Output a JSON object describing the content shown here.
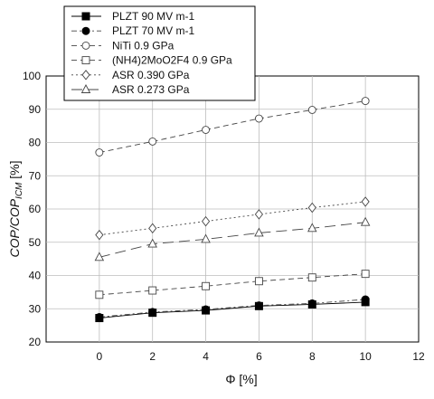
{
  "chart_data": {
    "type": "scatter",
    "title": "",
    "xlabel": "Φ [%]",
    "ylabel_parts": [
      "COP/COP",
      "ICM",
      " [%]"
    ],
    "xlim": [
      -2,
      12
    ],
    "ylim": [
      20,
      100
    ],
    "xticks": [
      0,
      2,
      4,
      6,
      8,
      10,
      12
    ],
    "yticks": [
      20,
      30,
      40,
      50,
      60,
      70,
      80,
      90,
      100
    ],
    "grid": true,
    "legend_position": "top",
    "series": [
      {
        "name": "PLZT 90 MV m-1",
        "marker": "filled-square",
        "line": "solid",
        "points": [
          [
            0,
            27.2
          ],
          [
            2,
            28.8
          ],
          [
            4,
            29.5
          ],
          [
            6,
            30.8
          ],
          [
            8,
            31.3
          ],
          [
            10,
            32.0
          ]
        ]
      },
      {
        "name": "PLZT 70 MV m-1",
        "marker": "filled-circle",
        "line": "dash-dot",
        "points": [
          [
            0,
            27.5
          ],
          [
            2,
            29.0
          ],
          [
            4,
            29.8
          ],
          [
            6,
            31.0
          ],
          [
            8,
            31.6
          ],
          [
            10,
            32.8
          ]
        ]
      },
      {
        "name": "NiTi 0.9 GPa",
        "marker": "open-circle",
        "line": "dashed",
        "points": [
          [
            0,
            77.0
          ],
          [
            2,
            80.3
          ],
          [
            4,
            83.8
          ],
          [
            6,
            87.2
          ],
          [
            8,
            89.8
          ],
          [
            10,
            92.5
          ]
        ]
      },
      {
        "name": "(NH4)2MoO2F4 0.9 GPa",
        "marker": "open-square",
        "line": "dashed",
        "points": [
          [
            0,
            34.2
          ],
          [
            2,
            35.5
          ],
          [
            4,
            36.8
          ],
          [
            6,
            38.3
          ],
          [
            8,
            39.4
          ],
          [
            10,
            40.5
          ]
        ]
      },
      {
        "name": "ASR 0.390 GPa",
        "marker": "open-diamond",
        "line": "dotted",
        "points": [
          [
            0,
            52.2
          ],
          [
            2,
            54.2
          ],
          [
            4,
            56.3
          ],
          [
            6,
            58.4
          ],
          [
            8,
            60.4
          ],
          [
            10,
            62.2
          ]
        ]
      },
      {
        "name": "ASR 0.273 GPa",
        "marker": "open-triangle",
        "line": "long-dash",
        "points": [
          [
            0,
            45.5
          ],
          [
            2,
            49.5
          ],
          [
            4,
            50.9
          ],
          [
            6,
            52.8
          ],
          [
            8,
            54.2
          ],
          [
            10,
            56.0
          ]
        ]
      }
    ]
  }
}
